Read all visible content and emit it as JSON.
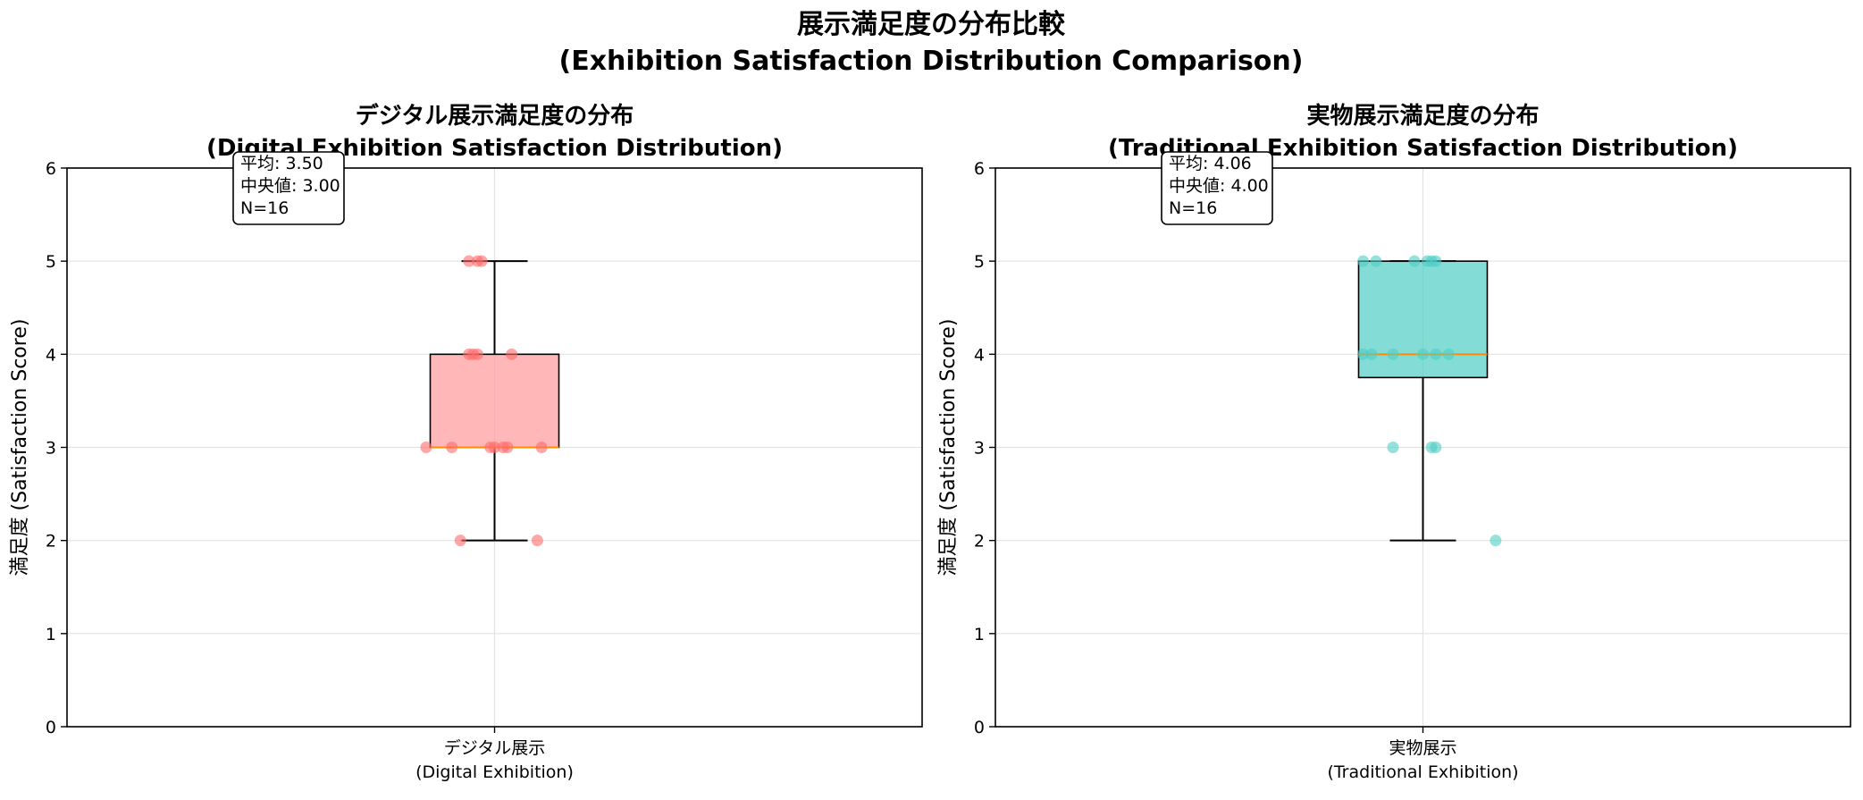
{
  "figure": {
    "title_line1": "展示満足度の分布比較",
    "title_line2": "(Exhibition Satisfaction Distribution Comparison)"
  },
  "chart_data": [
    {
      "type": "box",
      "title_line1": "デジタル展示満足度の分布",
      "title_line2": "(Digital Exhibition Satisfaction Distribution)",
      "ylabel": "満足度 (Satisfaction Score)",
      "xlabel": "",
      "category_line1": "デジタル展示",
      "category_line2": "(Digital Exhibition)",
      "ylim": [
        0,
        6
      ],
      "yticks": [
        "0",
        "1",
        "2",
        "3",
        "4",
        "5",
        "6"
      ],
      "grid": true,
      "box": {
        "min": 2,
        "q1": 3,
        "median": 3,
        "q3": 4,
        "max": 5
      },
      "points": [
        {
          "jitter": -0.03,
          "value": 5
        },
        {
          "jitter": -0.02,
          "value": 5
        },
        {
          "jitter": -0.015,
          "value": 5
        },
        {
          "jitter": -0.03,
          "value": 4
        },
        {
          "jitter": -0.025,
          "value": 4
        },
        {
          "jitter": -0.02,
          "value": 4
        },
        {
          "jitter": 0.02,
          "value": 4
        },
        {
          "jitter": -0.08,
          "value": 3
        },
        {
          "jitter": -0.05,
          "value": 3
        },
        {
          "jitter": -0.005,
          "value": 3
        },
        {
          "jitter": 0.0,
          "value": 3
        },
        {
          "jitter": 0.01,
          "value": 3
        },
        {
          "jitter": 0.015,
          "value": 3
        },
        {
          "jitter": 0.055,
          "value": 3
        },
        {
          "jitter": -0.04,
          "value": 2
        },
        {
          "jitter": 0.05,
          "value": 2
        }
      ],
      "stats": {
        "mean": "平均: 3.50",
        "median": "中央値: 3.00",
        "n": "N=16"
      },
      "colors": {
        "box": "#ff9999",
        "points": "#ff6b6b",
        "median": "#ff8c00"
      }
    },
    {
      "type": "box",
      "title_line1": "実物展示満足度の分布",
      "title_line2": "(Traditional Exhibition Satisfaction Distribution)",
      "ylabel": "満足度 (Satisfaction Score)",
      "xlabel": "",
      "category_line1": "実物展示",
      "category_line2": "(Traditional Exhibition)",
      "ylim": [
        0,
        6
      ],
      "yticks": [
        "0",
        "1",
        "2",
        "3",
        "4",
        "5",
        "6"
      ],
      "grid": true,
      "box": {
        "min": 2,
        "q1": 3.75,
        "median": 4,
        "q3": 5,
        "max": 5
      },
      "points": [
        {
          "jitter": -0.07,
          "value": 5
        },
        {
          "jitter": -0.055,
          "value": 5
        },
        {
          "jitter": -0.01,
          "value": 5
        },
        {
          "jitter": 0.005,
          "value": 5
        },
        {
          "jitter": 0.01,
          "value": 5
        },
        {
          "jitter": 0.015,
          "value": 5
        },
        {
          "jitter": -0.07,
          "value": 4
        },
        {
          "jitter": -0.06,
          "value": 4
        },
        {
          "jitter": -0.035,
          "value": 4
        },
        {
          "jitter": 0.0,
          "value": 4
        },
        {
          "jitter": 0.015,
          "value": 4
        },
        {
          "jitter": 0.03,
          "value": 4
        },
        {
          "jitter": -0.035,
          "value": 3
        },
        {
          "jitter": 0.01,
          "value": 3
        },
        {
          "jitter": 0.015,
          "value": 3
        },
        {
          "jitter": 0.085,
          "value": 2
        }
      ],
      "stats": {
        "mean": "平均: 4.06",
        "median": "中央値: 4.00",
        "n": "N=16"
      },
      "colors": {
        "box": "#4ecdc4",
        "points": "#4ecdc4",
        "median": "#ff8c00"
      }
    }
  ]
}
